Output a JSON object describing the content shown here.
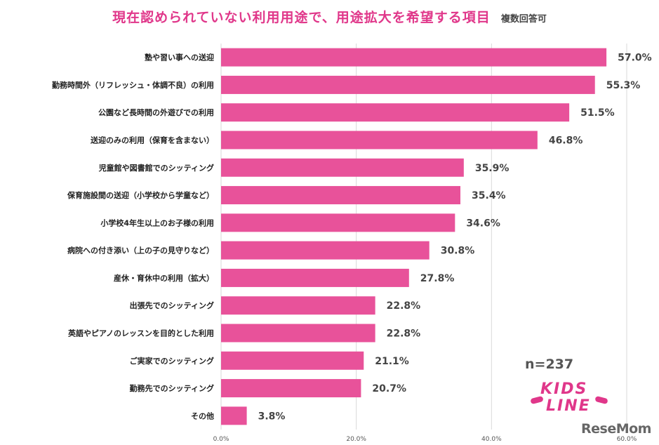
{
  "title": "現在認められていない利用用途で、用途拡大を希望する項目",
  "subtitle": "複数回答可",
  "sample_size": "n=237",
  "logo": {
    "kids": "KIDS",
    "line": "LINE"
  },
  "watermark": "ReseMom",
  "colors": {
    "bar": "#e8529a",
    "title": "#e0378a",
    "grid": "#d9d9d9"
  },
  "chart_data": {
    "type": "bar",
    "orientation": "horizontal",
    "title": "現在認められていない利用用途で、用途拡大を希望する項目",
    "subtitle": "複数回答可",
    "xlim": [
      0,
      60
    ],
    "ticks": [
      0,
      20,
      40,
      60
    ],
    "tick_labels": [
      "0.0%",
      "20.0%",
      "40.0%",
      "60.0%"
    ],
    "grid": true,
    "categories": [
      "塾や習い事への送迎",
      "勤務時間外（リフレッシュ・体調不良）の利用",
      "公園など長時間の外遊びでの利用",
      "送迎のみの利用（保育を含まない）",
      "児童館や図書館でのシッティング",
      "保育施設間の送迎（小学校から学童など）",
      "小学校4年生以上のお子様の利用",
      "病院への付き添い（上の子の見守りなど）",
      "産休・育休中の利用（拡大）",
      "出張先でのシッティング",
      "英語やピアノのレッスンを目的とした利用",
      "ご実家でのシッティング",
      "勤務先でのシッティング",
      "その他"
    ],
    "values": [
      57.0,
      55.3,
      51.5,
      46.8,
      35.9,
      35.4,
      34.6,
      30.8,
      27.8,
      22.8,
      22.8,
      21.1,
      20.7,
      3.8
    ],
    "value_labels": [
      "57.0%",
      "55.3%",
      "51.5%",
      "46.8%",
      "35.9%",
      "35.4%",
      "34.6%",
      "30.8%",
      "27.8%",
      "22.8%",
      "22.8%",
      "21.1%",
      "20.7%",
      "3.8%"
    ]
  }
}
